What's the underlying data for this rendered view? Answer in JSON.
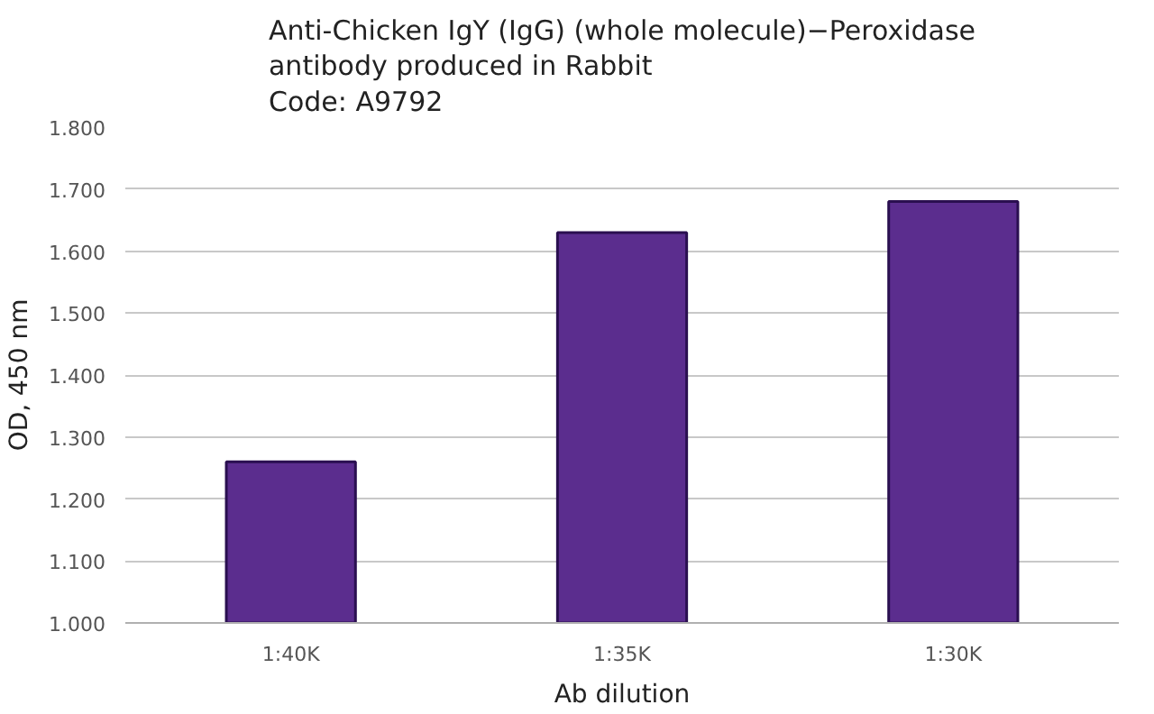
{
  "chart_data": {
    "type": "bar",
    "title": "Anti-Chicken IgY (IgG) (whole molecule)−Peroxidase\nantibody produced in Rabbit\nCode: A9792",
    "xlabel": "Ab dilution",
    "ylabel": "OD, 450 nm",
    "categories": [
      "1:40K",
      "1:35K",
      "1:30K"
    ],
    "values": [
      1.26,
      1.63,
      1.68
    ],
    "color": "#5b2d8e",
    "ylim": [
      1.0,
      1.8
    ],
    "yticks": [
      {
        "value": 1.0,
        "label": "1.000"
      },
      {
        "value": 1.1,
        "label": "1.100"
      },
      {
        "value": 1.2,
        "label": "1.200"
      },
      {
        "value": 1.3,
        "label": "1.300"
      },
      {
        "value": 1.4,
        "label": "1.400"
      },
      {
        "value": 1.5,
        "label": "1.500"
      },
      {
        "value": 1.6,
        "label": "1.600"
      },
      {
        "value": 1.7,
        "label": "1.700"
      },
      {
        "value": 1.8,
        "label": "1.800"
      }
    ],
    "grid": "y"
  }
}
